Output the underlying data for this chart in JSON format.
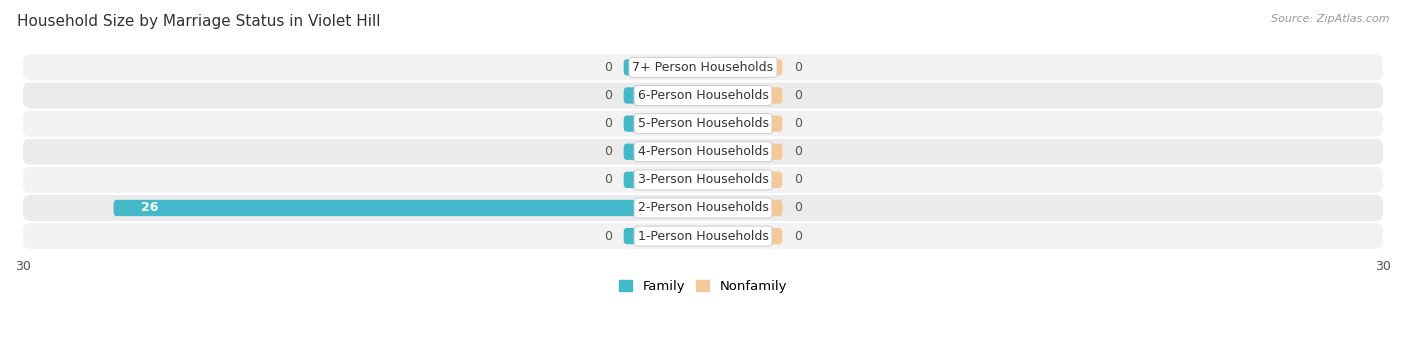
{
  "title": "Household Size by Marriage Status in Violet Hill",
  "source": "Source: ZipAtlas.com",
  "categories": [
    "7+ Person Households",
    "6-Person Households",
    "5-Person Households",
    "4-Person Households",
    "3-Person Households",
    "2-Person Households",
    "1-Person Households"
  ],
  "family_values": [
    0,
    0,
    0,
    0,
    0,
    26,
    0
  ],
  "nonfamily_values": [
    0,
    0,
    0,
    0,
    0,
    0,
    0
  ],
  "family_color": "#43b8c8",
  "nonfamily_color": "#f5c89a",
  "row_bg_even": "#f2f2f2",
  "row_bg_odd": "#ebebeb",
  "xlim": 30,
  "zero_stub": 3.5,
  "label_fontsize": 9,
  "title_fontsize": 11,
  "source_fontsize": 8,
  "label_color": "#555555",
  "title_color": "#333333",
  "source_color": "#999999",
  "value_label_inside_color": "#ffffff",
  "value_label_outside_color": "#555555"
}
